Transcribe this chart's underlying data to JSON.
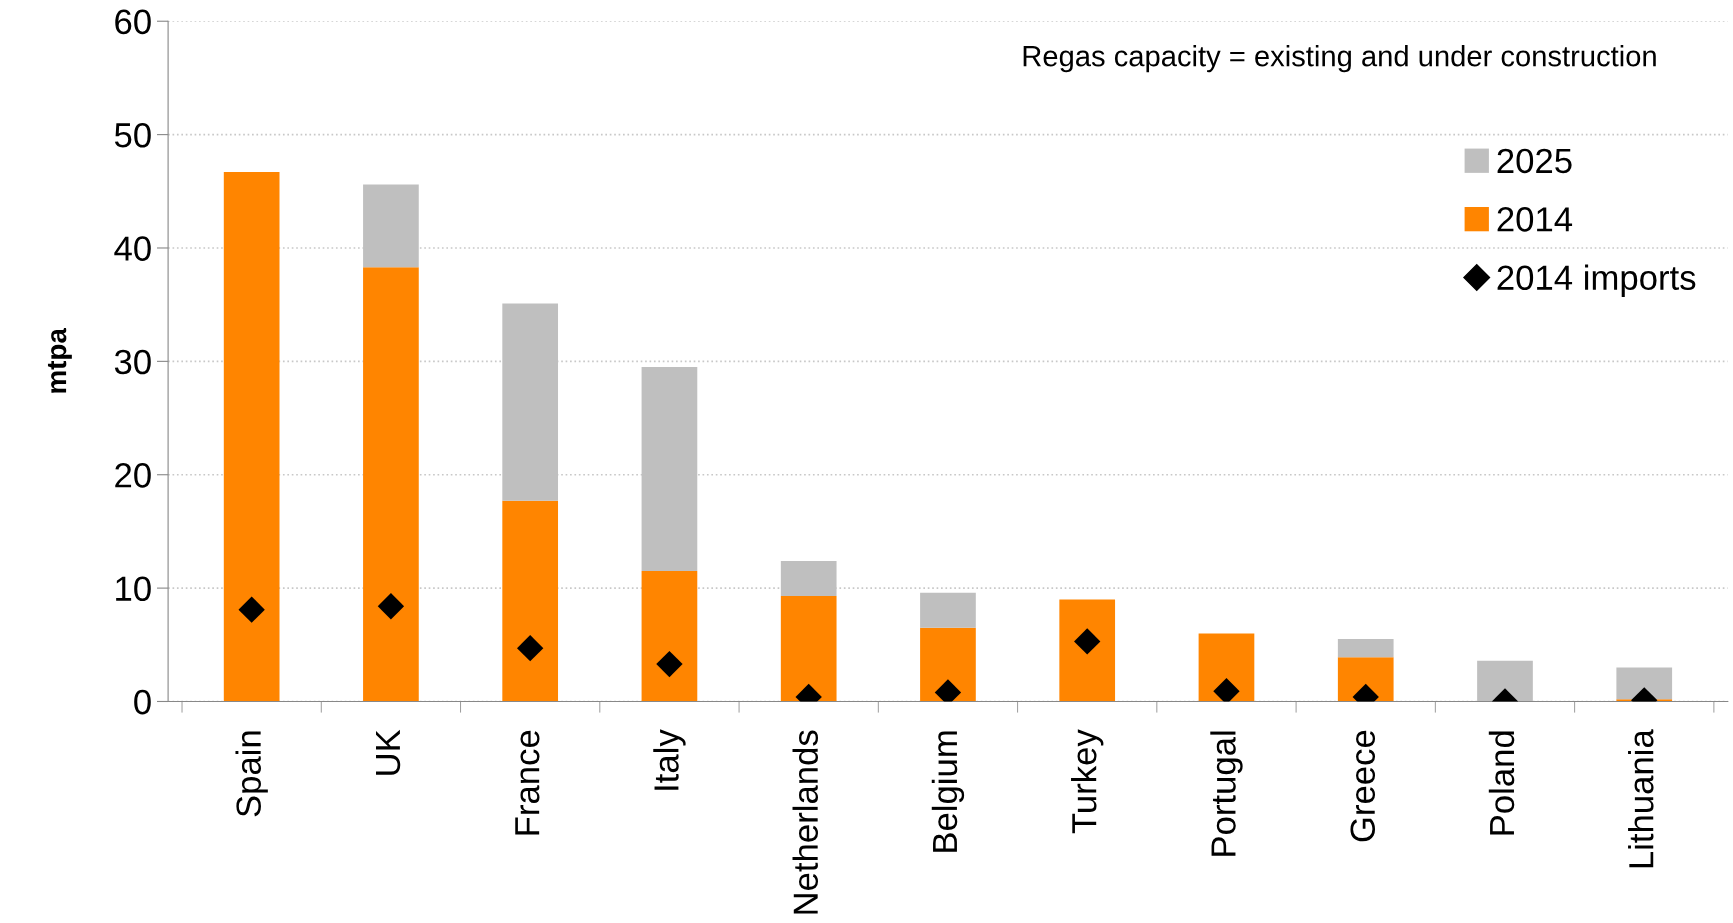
{
  "chart_data": {
    "type": "bar",
    "stacked": true,
    "ylabel": "mtpa",
    "categories": [
      "Spain",
      "UK",
      "France",
      "Italy",
      "Netherlands",
      "Belgium",
      "Turkey",
      "Portugal",
      "Greece",
      "Poland",
      "Lithuania"
    ],
    "series": [
      {
        "name": "2014",
        "color": "#ff8500",
        "values": [
          46.7,
          38.3,
          17.7,
          11.5,
          9.3,
          6.5,
          9.0,
          6.0,
          3.9,
          0,
          0.2
        ]
      },
      {
        "name": "2025",
        "color": "#bfbfbf",
        "values": [
          0,
          7.3,
          17.4,
          18.0,
          3.1,
          3.1,
          0,
          0,
          1.6,
          3.6,
          2.8
        ]
      },
      {
        "name": "2014 imports",
        "type": "scatter",
        "marker": "diamond",
        "color": "#000000",
        "values": [
          8.1,
          8.4,
          4.7,
          3.3,
          0.4,
          0.8,
          5.3,
          0.9,
          0.4,
          0,
          0.1
        ]
      }
    ],
    "ylim": [
      0,
      60
    ],
    "yticks": [
      0,
      10,
      20,
      30,
      40,
      50,
      60
    ],
    "grid": "y",
    "legend": "top right",
    "annotations": [
      "Regas capacity = existing and under construction"
    ]
  }
}
